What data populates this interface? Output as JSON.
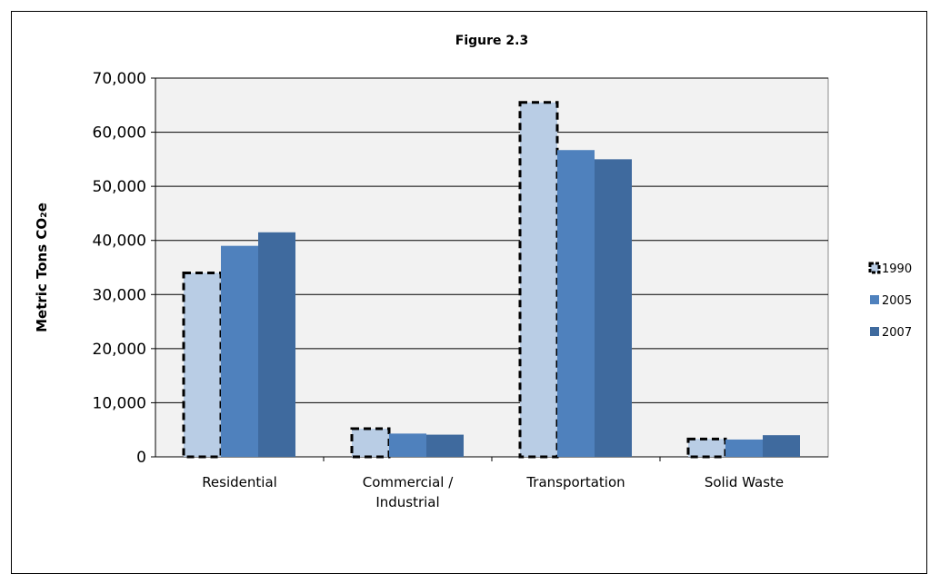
{
  "chart_data": {
    "type": "bar",
    "title": "Figure 2.3",
    "xlabel": "",
    "ylabel": "Metric Tons CO₂e",
    "ylim": [
      0,
      70000
    ],
    "yticks": [
      0,
      10000,
      20000,
      30000,
      40000,
      50000,
      60000,
      70000
    ],
    "ytick_labels": [
      "0",
      "10,000",
      "20,000",
      "30,000",
      "40,000",
      "50,000",
      "60,000",
      "70,000"
    ],
    "categories": [
      [
        "Residential"
      ],
      [
        "Commercial /",
        "Industrial"
      ],
      [
        "Transportation"
      ],
      [
        "Solid Waste"
      ]
    ],
    "series": [
      {
        "name": "1990",
        "values": [
          34000,
          5200,
          65500,
          3300
        ],
        "color": "#b9cde5",
        "style": "dashed-outline"
      },
      {
        "name": "2005",
        "values": [
          39000,
          4300,
          56700,
          3200
        ],
        "color": "#4f81bd",
        "style": "solid"
      },
      {
        "name": "2007",
        "values": [
          41500,
          4100,
          55000,
          4000
        ],
        "color": "#3f6a9e",
        "style": "solid"
      }
    ],
    "grid": true,
    "legend_position": "right",
    "plot_background": "#f2f2f2"
  }
}
